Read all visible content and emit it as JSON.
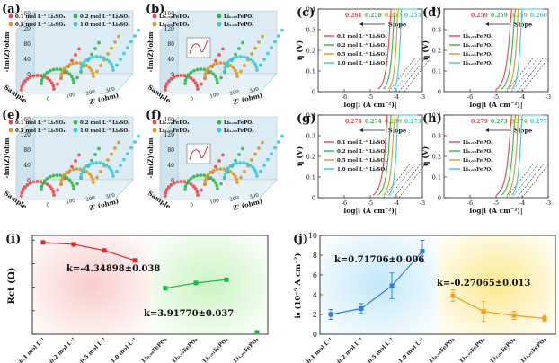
{
  "colors": {
    "s1": "#e8474a",
    "s2": "#36b34a",
    "s3": "#d49a2a",
    "s4": "#3ec5d6",
    "red": "#d62d2d",
    "green": "#22b14c",
    "blue": "#2a7ddc",
    "orange": "#f0a020",
    "bgRed": "#f8c9c9",
    "bgGreen": "#c8f3c0",
    "bgBlue": "#bfe6f8",
    "bgYellow": "#fbe78a"
  },
  "nyquist": [
    {
      "id": "a",
      "label": "(a)",
      "type": "nyquist",
      "legend": [
        "0.1 mol L⁻¹ Li₂SO₄",
        "0.2 mol L⁻¹ Li₂SO₄",
        "0.5 mol L⁻¹ Li₂SO₄",
        "1.0 mol L⁻¹ Li₂SO₄"
      ],
      "ylabel": "-Im(Z)/ohm",
      "xlabel": "Z' (ohm)",
      "zlabel": "Sample",
      "inset": false
    },
    {
      "id": "b",
      "label": "(b)",
      "type": "nyquist",
      "legend": [
        "Li₀.₉₈FePO₄",
        "Li₀.₉₉FePO₄",
        "Li₁.₀₁FePO₄",
        "Li₁.₀₂FePO₄"
      ],
      "ylabel": "-Im(Z)/ohm",
      "xlabel": "Z' (ohm)",
      "zlabel": "Sample",
      "inset": true
    },
    {
      "id": "e",
      "label": "(e)",
      "type": "nyquist",
      "legend": [
        "0.1 mol L⁻¹ Li₂SO₄",
        "0.2 mol L⁻¹ Li₂SO₄",
        "0.5 mol L⁻¹ Li₂SO₄",
        "1.0 mol L⁻¹ Li₂SO₄"
      ],
      "ylabel": "-Im(Z)/ohm",
      "xlabel": "Z' (ohm)",
      "zlabel": "Sample",
      "inset": false
    },
    {
      "id": "f",
      "label": "(f)",
      "type": "nyquist",
      "legend": [
        "Li₀.₉₈FePO₄",
        "Li₀.₉₉FePO₄",
        "Li₁.₀₁FePO₄",
        "Li₁.₀₂FePO₄"
      ],
      "ylabel": "-Im(Z)/ohm",
      "xlabel": "Z' (ohm)",
      "zlabel": "Sample",
      "inset": true
    }
  ],
  "chart_data": [
    {
      "id": "a",
      "type": "scatter",
      "title": "",
      "xlabel": "Z' (ohm)",
      "ylabel": "-Im(Z)/ohm",
      "zlabel": "Sample",
      "series": [
        {
          "name": "0.1 mol L⁻¹ Li₂SO₄"
        },
        {
          "name": "0.2 mol L⁻¹ Li₂SO₄"
        },
        {
          "name": "0.5 mol L⁻¹ Li₂SO₄"
        },
        {
          "name": "1.0 mol L⁻¹ Li₂SO₄"
        }
      ],
      "y_ticks": [
        0,
        40,
        80,
        120,
        160
      ],
      "x_ticks": [
        0,
        100,
        200,
        300
      ]
    },
    {
      "id": "b",
      "type": "scatter",
      "xlabel": "Z' (ohm)",
      "ylabel": "-Im(Z)/ohm",
      "zlabel": "Sample",
      "series": [
        {
          "name": "Li₀.₉₈FePO₄"
        },
        {
          "name": "Li₀.₉₉FePO₄"
        },
        {
          "name": "Li₁.₀₁FePO₄"
        },
        {
          "name": "Li₁.₀₂FePO₄"
        }
      ],
      "y_ticks": [
        0,
        40,
        80,
        120,
        160
      ],
      "x_ticks": [
        0,
        100,
        200,
        300
      ]
    },
    {
      "id": "c",
      "label": "(c)",
      "type": "line",
      "xlabel": "log|i (A cm⁻²)|",
      "ylabel": "η (V)",
      "xlim": [
        -7,
        -3
      ],
      "ylim": [
        0,
        0.4
      ],
      "x_ticks": [
        -6,
        -5,
        -4,
        -3
      ],
      "y_ticks": [
        0,
        0.1,
        0.2,
        0.3,
        0.4
      ],
      "slope_title": "Slope",
      "slopes": [
        "0.261",
        "0.258",
        "0.257",
        "0.255"
      ],
      "legend": [
        "0.1 mol L⁻¹ Li₂SO₄",
        "0.2 mol L⁻¹ Li₂SO₄",
        "0.5 mol L⁻¹ Li₂SO₄",
        "1.0 mol L⁻¹ Li₂SO₄"
      ],
      "onset": [
        -4.7,
        -4.5,
        -4.3,
        -4.1
      ]
    },
    {
      "id": "d",
      "label": "(d)",
      "type": "line",
      "xlabel": "log|i (A cm⁻²)|",
      "ylabel": "η (V)",
      "xlim": [
        -7,
        -3
      ],
      "ylim": [
        0,
        0.4
      ],
      "x_ticks": [
        -6,
        -5,
        -4,
        -3
      ],
      "y_ticks": [
        0,
        0.1,
        0.2,
        0.3,
        0.4
      ],
      "slope_title": "Slope",
      "slopes": [
        "0.259",
        "0.259",
        "0.259",
        "0.260"
      ],
      "legend": [
        "Li₀.₉₈FePO₄",
        "Li₀.₉₉FePO₄",
        "Li₁.₀₁FePO₄",
        "Li₁.₀₂FePO₄"
      ],
      "onset": [
        -5.0,
        -4.8,
        -4.6,
        -4.4
      ]
    },
    {
      "id": "e",
      "type": "scatter",
      "xlabel": "Z' (ohm)",
      "ylabel": "-Im(Z)/ohm",
      "zlabel": "Sample",
      "series": [
        {
          "name": "0.1 mol L⁻¹ Li₂SO₄"
        },
        {
          "name": "0.2 mol L⁻¹ Li₂SO₄"
        },
        {
          "name": "0.5 mol L⁻¹ Li₂SO₄"
        },
        {
          "name": "1.0 mol L⁻¹ Li₂SO₄"
        }
      ],
      "y_ticks": [
        0,
        40,
        80,
        120,
        160
      ],
      "x_ticks": [
        0,
        100,
        200,
        300
      ]
    },
    {
      "id": "f",
      "type": "scatter",
      "xlabel": "Z' (ohm)",
      "ylabel": "-Im(Z)/ohm",
      "zlabel": "Sample",
      "series": [
        {
          "name": "Li₀.₉₈FePO₄"
        },
        {
          "name": "Li₀.₉₉FePO₄"
        },
        {
          "name": "Li₁.₀₁FePO₄"
        },
        {
          "name": "Li₁.₀₂FePO₄"
        }
      ],
      "y_ticks": [
        0,
        40,
        80,
        120,
        160
      ],
      "x_ticks": [
        0,
        100,
        200,
        300
      ]
    },
    {
      "id": "g",
      "label": "(g)",
      "type": "line",
      "xlabel": "log|i (A cm⁻²)|",
      "ylabel": "η (V)",
      "xlim": [
        -7,
        -3
      ],
      "ylim": [
        0,
        0.4
      ],
      "x_ticks": [
        -6,
        -5,
        -4,
        -3
      ],
      "y_ticks": [
        0,
        0.1,
        0.2,
        0.3,
        0.4
      ],
      "slope_title": "Slope",
      "slopes": [
        "0.274",
        "0.274",
        "0.286",
        "0.273"
      ],
      "legend": [
        "0.1 mol L⁻¹ Li₂SO₄",
        "0.2 mol L⁻¹ Li₂SO₄",
        "0.5 mol L⁻¹ Li₂SO₄",
        "1.0 mol L⁻¹ Li₂SO₄"
      ],
      "onset": [
        -4.9,
        -4.7,
        -4.5,
        -4.3
      ]
    },
    {
      "id": "h",
      "label": "(h)",
      "type": "line",
      "xlabel": "log|i (A cm⁻²)|",
      "ylabel": "η (V)",
      "xlim": [
        -7,
        -3
      ],
      "ylim": [
        0,
        0.4
      ],
      "x_ticks": [
        -6,
        -5,
        -4,
        -3
      ],
      "y_ticks": [
        0,
        0.1,
        0.2,
        0.3,
        0.4
      ],
      "slope_title": "Slope",
      "slopes": [
        "0.279",
        "0.273",
        "0.274",
        "0.277"
      ],
      "legend": [
        "Li₀.₉₈FePO₄",
        "Li₀.₉₉FePO₄",
        "Li₁.₀₁FePO₄",
        "Li₁.₀₂FePO₄"
      ],
      "onset": [
        -5.0,
        -4.8,
        -4.6,
        -4.4
      ]
    },
    {
      "id": "i",
      "label": "(i)",
      "type": "scatter",
      "ylabel": "Rct (Ω)",
      "ylim": [
        0,
        210
      ],
      "categories": [
        "B-0.1 mol L⁻¹",
        "B-0.2 mol L⁻¹",
        "B-0.5 mol L⁻¹",
        "B-1.0 mol L⁻¹",
        "Li₀.₉₈FePO₄",
        "Li₀.₉₉FePO₄",
        "Li₁.₀₁FePO₄",
        "Li₁.₀₂FePO₄"
      ],
      "series": [
        {
          "name": "electrolyte",
          "values": [
            195,
            191,
            178,
            157
          ]
        },
        {
          "name": "lithiation",
          "values": [
            98,
            109,
            116,
            4
          ]
        }
      ],
      "annotations": [
        "k=-4.34898±0.038",
        "k=3.91770±0.037"
      ]
    },
    {
      "id": "j",
      "label": "(j)",
      "type": "scatter",
      "ylabel": "i₀ (10⁻⁵ A cm⁻²)",
      "ylim": [
        0,
        10
      ],
      "categories": [
        "B-0.1 mol L⁻¹",
        "B-0.2 mol L⁻¹",
        "B-0.5 mol L⁻¹",
        "B-1.0 mol L⁻¹",
        "Li₀.₉₈FePO₄",
        "Li₀.₉₉FePO₄",
        "Li₁.₀₁FePO₄",
        "Li₁.₀₂FePO₄"
      ],
      "series": [
        {
          "name": "electrolyte",
          "values": [
            2.0,
            2.6,
            4.9,
            8.4
          ],
          "errors": [
            0.5,
            0.5,
            1.3,
            1.1
          ]
        },
        {
          "name": "lithiation",
          "values": [
            3.9,
            2.3,
            1.9,
            1.6
          ],
          "errors": [
            0.6,
            1.0,
            0.4,
            0.3
          ]
        }
      ],
      "annotations": [
        "k=0.71706±0.006",
        "k=-0.27065±0.013"
      ]
    }
  ]
}
